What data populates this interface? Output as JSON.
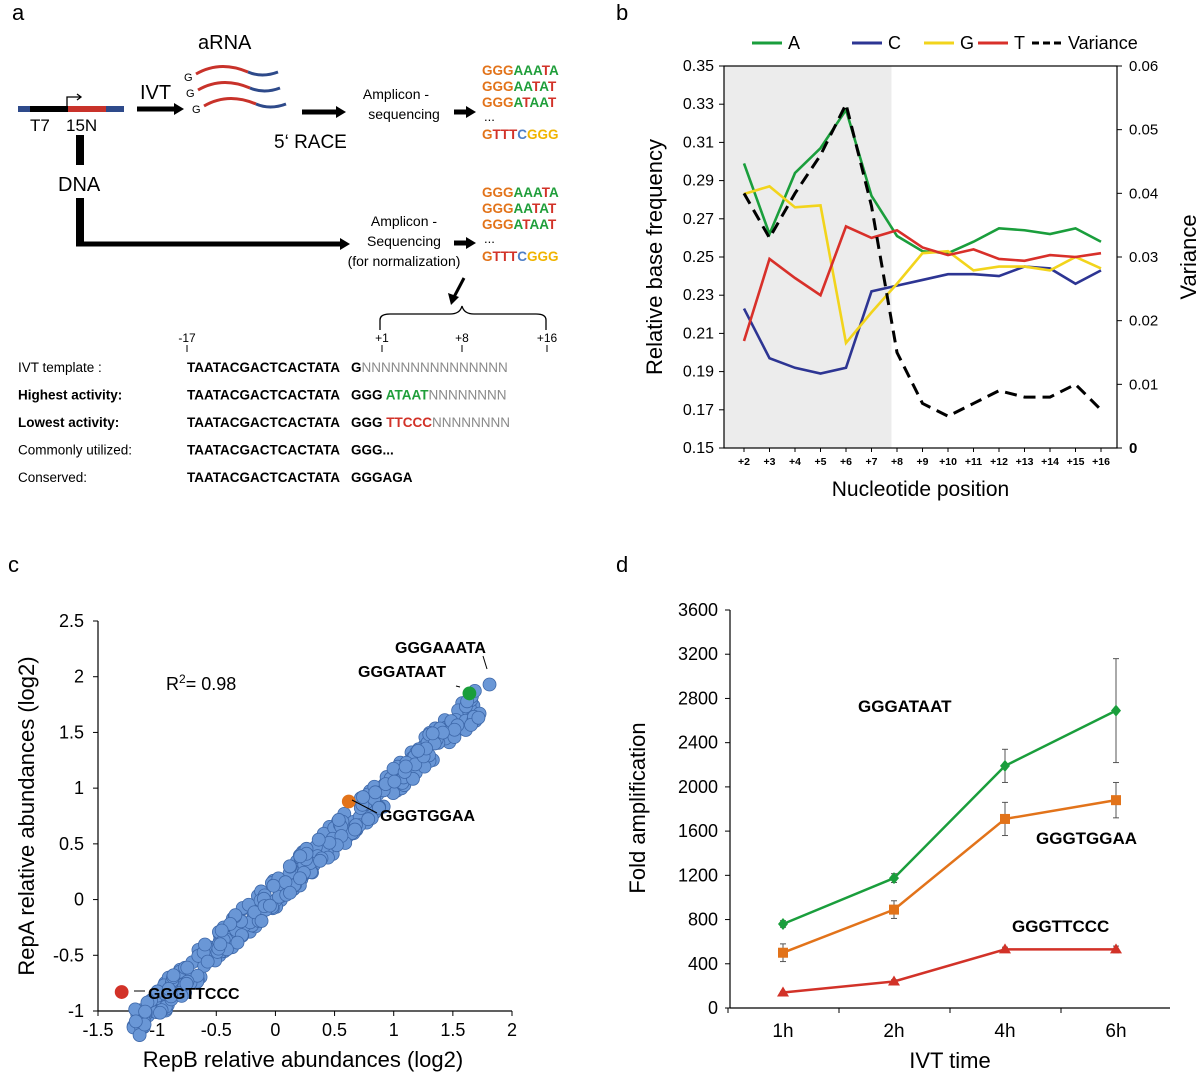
{
  "colors": {
    "A": "#1a9e3c",
    "C": "#2d3593",
    "G": "#f2d41c",
    "T": "#d8302a",
    "orange": "#e2731a",
    "green_text": "#1f9e3a",
    "red_text": "#d23228",
    "yellow_text": "#f0b400",
    "blue_text": "#4f7fc6",
    "dot": "#6a97d6",
    "dot_edge": "#3e68a9",
    "shade": "#ececec",
    "dark_blue": "#2e4a8a",
    "dna_red": "#c8322a"
  },
  "panel_a": {
    "label": "a",
    "arna": "aRNA",
    "ivt": "IVT",
    "g": "G",
    "t7": "T7",
    "n15": "15N",
    "dna": "DNA",
    "race": "5‘ RACE",
    "amplicon1_l1": "Amplicon -",
    "amplicon1_l2": "sequencing",
    "amplicon2_l1": "Amplicon -",
    "amplicon2_l2": "Sequencing",
    "amplicon2_l3": "(for normalization)",
    "ellipsis": "...",
    "reads": [
      [
        [
          "GGG",
          "o"
        ],
        [
          "AAA",
          "g"
        ],
        [
          "T",
          "r"
        ],
        [
          "A",
          "g"
        ]
      ],
      [
        [
          "GGG",
          "o"
        ],
        [
          "AA",
          "g"
        ],
        [
          "T",
          "r"
        ],
        [
          "A",
          "g"
        ],
        [
          "T",
          "r"
        ]
      ],
      [
        [
          "GGG",
          "o"
        ],
        [
          "A",
          "g"
        ],
        [
          "T",
          "r"
        ],
        [
          "AA",
          "g"
        ],
        [
          "T",
          "r"
        ]
      ]
    ],
    "read_last": [
      [
        "G",
        "o"
      ],
      [
        "TTT",
        "r"
      ],
      [
        "C",
        "b"
      ],
      [
        "GGG",
        "y"
      ]
    ],
    "ruler": {
      "m17": "-17",
      "p1": "+1",
      "p8": "+8",
      "p16": "+16"
    },
    "rows": [
      {
        "label": "IVT template :",
        "prefix": "TAATACGACTCACTATA",
        "mid": "G",
        "tail": "NNNNNNNNNNNNNNN",
        "label_color": "k",
        "mid_color": "k",
        "tail_color": "n"
      },
      {
        "label": "Highest activity:",
        "prefix": "TAATACGACTCACTATA",
        "mid": "GGG ",
        "tail2": "ATAAT",
        "tail": "NNNNNNNN",
        "label_color": "g",
        "tail2_color": "g"
      },
      {
        "label": "Lowest activity:",
        "prefix": "TAATACGACTCACTATA",
        "mid": "GGG ",
        "tail2": "TTCCC",
        "tail": "NNNNNNNN",
        "label_color": "r",
        "tail2_color": "r"
      },
      {
        "label": "Commonly utilized:",
        "prefix": "TAATACGACTCACTATA",
        "mid": "GGG...",
        "label_color": "k"
      },
      {
        "label": "Conserved:",
        "prefix": "TAATACGACTCACTATA",
        "mid": "GGGAGA",
        "label_color": "k"
      }
    ]
  },
  "chart_data": [
    {
      "panel": "b",
      "type": "line",
      "legend": [
        "A",
        "C",
        "G",
        "T",
        "Variance"
      ],
      "categories": [
        "+2",
        "+3",
        "+4",
        "+5",
        "+6",
        "+7",
        "+8",
        "+9",
        "+10",
        "+11",
        "+12",
        "+13",
        "+14",
        "+15",
        "+16"
      ],
      "series": [
        {
          "name": "A",
          "values": [
            0.299,
            0.262,
            0.294,
            0.307,
            0.327,
            0.282,
            0.261,
            0.253,
            0.252,
            0.258,
            0.265,
            0.264,
            0.262,
            0.265,
            0.258
          ]
        },
        {
          "name": "C",
          "values": [
            0.223,
            0.197,
            0.192,
            0.189,
            0.192,
            0.232,
            0.235,
            0.238,
            0.241,
            0.241,
            0.24,
            0.245,
            0.244,
            0.236,
            0.243
          ]
        },
        {
          "name": "G",
          "values": [
            0.283,
            0.287,
            0.276,
            0.277,
            0.205,
            0.221,
            0.236,
            0.252,
            0.253,
            0.243,
            0.245,
            0.245,
            0.243,
            0.25,
            0.244
          ]
        },
        {
          "name": "T",
          "values": [
            0.206,
            0.249,
            0.239,
            0.23,
            0.266,
            0.26,
            0.264,
            0.255,
            0.251,
            0.254,
            0.249,
            0.248,
            0.251,
            0.25,
            0.252
          ]
        },
        {
          "name": "Variance",
          "axis": "right",
          "values": [
            0.04,
            0.033,
            0.04,
            0.046,
            0.054,
            0.038,
            0.015,
            0.007,
            0.005,
            0.007,
            0.009,
            0.008,
            0.008,
            0.01,
            0.006
          ]
        }
      ],
      "ylabel": "Relative base frequency",
      "ylabel_right": "Variance",
      "xlabel": "Nucleotide position",
      "ylim": [
        0.15,
        0.35
      ],
      "yticks": [
        "0.15",
        "0.17",
        "0.19",
        "0.21",
        "0.23",
        "0.25",
        "0.27",
        "0.29",
        "0.31",
        "0.33",
        "0.35"
      ],
      "ylim_right": [
        0,
        0.06
      ],
      "yticks_right": [
        "0",
        "0.01",
        "0.02",
        "0.03",
        "0.04",
        "0.05",
        "0.06"
      ],
      "shaded_range": [
        "+2",
        "+7"
      ]
    },
    {
      "panel": "c",
      "type": "scatter",
      "xlabel": "RepB relative abundances (log2)",
      "ylabel": "RepA relative abundances (log2)",
      "xlim": [
        -1.5,
        2
      ],
      "ylim": [
        -1,
        2.5
      ],
      "xticks": [
        "-1.5",
        "-1",
        "-0.5",
        "0",
        "0.5",
        "1",
        "1.5",
        "2"
      ],
      "yticks": [
        "-1",
        "-0.5",
        "0",
        "0.5",
        "1",
        "1.5",
        "2",
        "2.5"
      ],
      "r2_prefix": "R",
      "r2_sup": "2",
      "r2_suffix": "= 0.98",
      "point_count": 420,
      "highlights": [
        {
          "label": "GGGAAATA",
          "x": 1.81,
          "y": 1.93,
          "color": "blue"
        },
        {
          "label": "GGGATAAT",
          "x": 1.64,
          "y": 1.85,
          "color": "green"
        },
        {
          "label": "GGGTGGAA",
          "x": 0.62,
          "y": 0.88,
          "color": "orange"
        },
        {
          "label": "GGGTTCCC",
          "x": -1.3,
          "y": -0.83,
          "color": "red"
        }
      ]
    },
    {
      "panel": "d",
      "type": "line",
      "categories": [
        "1h",
        "2h",
        "4h",
        "6h"
      ],
      "xlabel": "IVT time",
      "ylabel": "Fold amplification",
      "ylim": [
        0,
        3600
      ],
      "yticks": [
        "0",
        "400",
        "800",
        "1200",
        "1600",
        "2000",
        "2400",
        "2800",
        "3200",
        "3600"
      ],
      "series": [
        {
          "name": "GGGATAAT",
          "marker": "diamond",
          "values": [
            760,
            1175,
            2190,
            2690
          ],
          "errors": [
            30,
            40,
            150,
            470
          ]
        },
        {
          "name": "GGGTGGAA",
          "marker": "square",
          "values": [
            500,
            890,
            1710,
            1880
          ],
          "errors": [
            80,
            80,
            150,
            160
          ]
        },
        {
          "name": "GGGTTCCC",
          "marker": "triangle",
          "values": [
            140,
            240,
            530,
            530
          ],
          "errors": [
            10,
            15,
            20,
            30
          ]
        }
      ]
    }
  ],
  "panel_labels": {
    "b": "b",
    "c": "c",
    "d": "d"
  }
}
